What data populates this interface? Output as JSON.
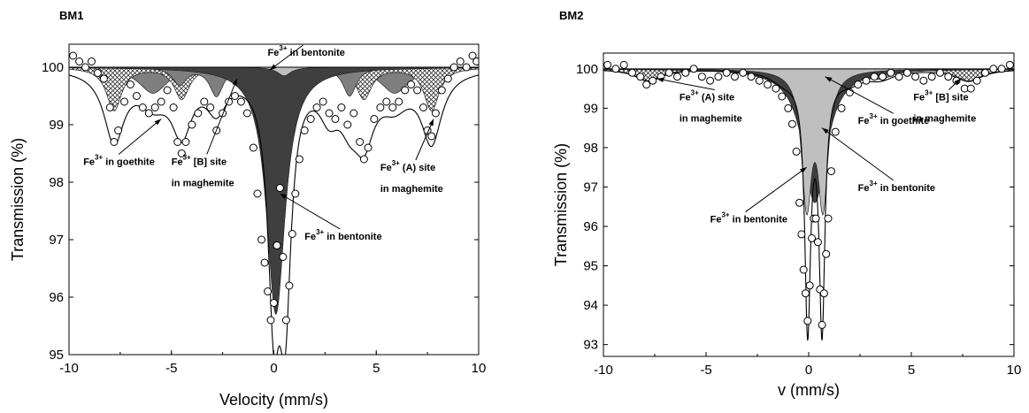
{
  "chart_data": [
    {
      "type": "scatter",
      "title": "BM1",
      "xlabel": "Velocity (mm/s)",
      "ylabel": "Transmission (%)",
      "xlim": [
        -10,
        10
      ],
      "ylim": [
        95,
        100.4
      ],
      "xticks": [
        -10,
        -5,
        0,
        5,
        10
      ],
      "yticks": [
        95,
        96,
        97,
        98,
        99,
        100
      ],
      "baseline": 100,
      "grid": false,
      "components": [
        {
          "kind": "fill-mid",
          "color": "#7f7f7f",
          "peaks": [
            {
              "x": -5.9,
              "d": 0.45,
              "w": 0.85
            },
            {
              "x": 5.9,
              "d": 0.45,
              "w": 0.85
            }
          ]
        },
        {
          "kind": "fill-hatch",
          "color": "#666666",
          "peaks": [
            {
              "x": -7.8,
              "d": 0.75,
              "w": 0.45
            },
            {
              "x": 7.7,
              "d": 0.75,
              "w": 0.45
            },
            {
              "x": -4.5,
              "d": 0.55,
              "w": 0.45
            },
            {
              "x": 4.4,
              "d": 0.55,
              "w": 0.45
            }
          ]
        },
        {
          "kind": "fill-mid",
          "color": "#7f7f7f",
          "peaks": [
            {
              "x": -2.8,
              "d": 0.5,
              "w": 0.4
            },
            {
              "x": 3.7,
              "d": 0.5,
              "w": 0.4
            },
            {
              "x": -4.6,
              "d": 0.3,
              "w": 0.4
            }
          ]
        },
        {
          "kind": "fill-dark",
          "color": "#3f3f3f",
          "peaks": [
            {
              "x": 0.1,
              "d": 4.3,
              "w": 0.55
            }
          ]
        },
        {
          "kind": "fill-light",
          "color": "#bfbfbf",
          "peaks": [
            {
              "x": 0.5,
              "d": 0.15,
              "w": 0.4
            }
          ]
        }
      ],
      "fit_envelope": {
        "peaks": [
          {
            "x": -7.8,
            "d": 1.2,
            "w": 0.6
          },
          {
            "x": -5.9,
            "d": 0.5,
            "w": 0.9
          },
          {
            "x": -4.5,
            "d": 1.0,
            "w": 0.6
          },
          {
            "x": -2.8,
            "d": 0.6,
            "w": 0.6
          },
          {
            "x": 0.0,
            "d": 3.8,
            "w": 0.35
          },
          {
            "x": 0.55,
            "d": 3.8,
            "w": 0.35
          },
          {
            "x": 2.7,
            "d": 0.6,
            "w": 0.6
          },
          {
            "x": 3.7,
            "d": 0.6,
            "w": 0.6
          },
          {
            "x": 4.4,
            "d": 1.0,
            "w": 0.6
          },
          {
            "x": 5.9,
            "d": 0.5,
            "w": 0.9
          },
          {
            "x": 7.7,
            "d": 1.2,
            "w": 0.6
          }
        ]
      },
      "spectrum_points": [
        [
          -9.8,
          100.2
        ],
        [
          -9.5,
          100.1
        ],
        [
          -9.2,
          100.0
        ],
        [
          -8.9,
          100.1
        ],
        [
          -8.6,
          99.9
        ],
        [
          -8.3,
          99.8
        ],
        [
          -8.0,
          99.3
        ],
        [
          -7.8,
          98.7
        ],
        [
          -7.6,
          98.9
        ],
        [
          -7.3,
          99.4
        ],
        [
          -7.0,
          99.7
        ],
        [
          -6.7,
          99.5
        ],
        [
          -6.4,
          99.3
        ],
        [
          -6.1,
          99.2
        ],
        [
          -5.8,
          99.3
        ],
        [
          -5.5,
          99.4
        ],
        [
          -5.2,
          99.6
        ],
        [
          -4.9,
          99.3
        ],
        [
          -4.7,
          98.7
        ],
        [
          -4.5,
          98.5
        ],
        [
          -4.3,
          98.7
        ],
        [
          -4.0,
          99.0
        ],
        [
          -3.7,
          99.2
        ],
        [
          -3.4,
          99.4
        ],
        [
          -3.1,
          99.3
        ],
        [
          -2.8,
          98.9
        ],
        [
          -2.5,
          99.2
        ],
        [
          -2.2,
          99.4
        ],
        [
          -1.9,
          99.5
        ],
        [
          -1.6,
          99.4
        ],
        [
          -1.3,
          99.2
        ],
        [
          -1.0,
          98.6
        ],
        [
          -0.8,
          97.8
        ],
        [
          -0.6,
          97.0
        ],
        [
          -0.45,
          96.6
        ],
        [
          -0.3,
          96.1
        ],
        [
          -0.15,
          95.6
        ],
        [
          0.0,
          95.9
        ],
        [
          0.15,
          96.9
        ],
        [
          0.3,
          97.9
        ],
        [
          0.45,
          96.7
        ],
        [
          0.6,
          95.6
        ],
        [
          0.75,
          96.2
        ],
        [
          0.9,
          97.1
        ],
        [
          1.05,
          97.8
        ],
        [
          1.25,
          98.4
        ],
        [
          1.5,
          98.9
        ],
        [
          1.8,
          99.1
        ],
        [
          2.1,
          99.3
        ],
        [
          2.4,
          99.4
        ],
        [
          2.7,
          99.2
        ],
        [
          3.0,
          99.1
        ],
        [
          3.3,
          99.3
        ],
        [
          3.6,
          99.0
        ],
        [
          3.9,
          99.2
        ],
        [
          4.2,
          98.7
        ],
        [
          4.4,
          98.4
        ],
        [
          4.6,
          98.6
        ],
        [
          4.9,
          99.1
        ],
        [
          5.2,
          99.3
        ],
        [
          5.5,
          99.4
        ],
        [
          5.8,
          99.3
        ],
        [
          6.1,
          99.4
        ],
        [
          6.4,
          99.6
        ],
        [
          6.7,
          99.7
        ],
        [
          7.0,
          99.6
        ],
        [
          7.3,
          99.3
        ],
        [
          7.5,
          98.9
        ],
        [
          7.7,
          98.8
        ],
        [
          7.9,
          99.2
        ],
        [
          8.2,
          99.6
        ],
        [
          8.5,
          99.8
        ],
        [
          8.8,
          100.0
        ],
        [
          9.1,
          100.1
        ],
        [
          9.4,
          100.0
        ],
        [
          9.7,
          100.2
        ],
        [
          9.9,
          100.1
        ]
      ],
      "annotations": [
        {
          "lines": [
            "Fe3+ in bentonite"
          ],
          "x": -0.3,
          "y": 100.2,
          "ax": -0.2,
          "ay": 99.95
        },
        {
          "lines": [
            "Fe3+ in goethite"
          ],
          "x": -9.3,
          "y": 98.3,
          "ax": -5.5,
          "ay": 99.1
        },
        {
          "lines": [
            "Fe3+ [B] site",
            "in maghemite"
          ],
          "x": -5.0,
          "y": 98.3,
          "ax": -1.8,
          "ay": 99.8
        },
        {
          "lines": [
            "Fe3+ (A) site",
            "in maghemite"
          ],
          "x": 5.2,
          "y": 98.2,
          "ax": 7.8,
          "ay": 99.1
        },
        {
          "lines": [
            "Fe3+ in bentonite"
          ],
          "x": 1.5,
          "y": 97.0,
          "ax": 0.3,
          "ay": 97.8
        }
      ]
    },
    {
      "type": "scatter",
      "title": "BM2",
      "xlabel": "v (mm/s)",
      "ylabel": "Transmission (%)",
      "xlim": [
        -10,
        10
      ],
      "ylim": [
        92.7,
        100.4
      ],
      "xticks": [
        -10,
        -5,
        0,
        5,
        10
      ],
      "yticks": [
        93,
        94,
        95,
        96,
        97,
        98,
        99,
        100
      ],
      "baseline": 100,
      "grid": false,
      "components": [
        {
          "kind": "fill-hatch",
          "color": "#666666",
          "peaks": [
            {
              "x": -7.8,
              "d": 0.3,
              "w": 0.8
            },
            {
              "x": 7.8,
              "d": 0.3,
              "w": 0.8
            }
          ]
        },
        {
          "kind": "fill-mid",
          "color": "#7f7f7f",
          "peaks": [
            {
              "x": -1.2,
              "d": 0.25,
              "w": 0.8
            },
            {
              "x": 2.0,
              "d": 0.25,
              "w": 0.8
            },
            {
              "x": 3.5,
              "d": 0.2,
              "w": 0.8
            }
          ]
        },
        {
          "kind": "fill-dark",
          "color": "#3f3f3f",
          "peaks": [
            {
              "x": 0.3,
              "d": 3.4,
              "w": 0.7
            }
          ]
        },
        {
          "kind": "fill-light",
          "color": "#bfbfbf",
          "peaks": [
            {
              "x": -0.1,
              "d": 3.3,
              "w": 0.3
            },
            {
              "x": 0.7,
              "d": 3.3,
              "w": 0.3
            }
          ]
        }
      ],
      "fit_envelope": {
        "peaks": [
          {
            "x": -7.8,
            "d": 0.3,
            "w": 0.8
          },
          {
            "x": -1.2,
            "d": 0.25,
            "w": 0.8
          },
          {
            "x": -0.05,
            "d": 6.2,
            "w": 0.17
          },
          {
            "x": 0.65,
            "d": 6.2,
            "w": 0.17
          },
          {
            "x": 0.3,
            "d": 0.3,
            "w": 0.7
          },
          {
            "x": 2.0,
            "d": 0.25,
            "w": 0.8
          },
          {
            "x": 3.5,
            "d": 0.2,
            "w": 0.8
          },
          {
            "x": 7.8,
            "d": 0.3,
            "w": 0.8
          }
        ]
      },
      "spectrum_points": [
        [
          -9.8,
          100.1
        ],
        [
          -9.4,
          100.0
        ],
        [
          -9.0,
          100.1
        ],
        [
          -8.6,
          99.9
        ],
        [
          -8.2,
          99.8
        ],
        [
          -7.9,
          99.6
        ],
        [
          -7.6,
          99.7
        ],
        [
          -7.2,
          99.8
        ],
        [
          -6.8,
          99.9
        ],
        [
          -6.4,
          99.8
        ],
        [
          -6.0,
          99.9
        ],
        [
          -5.6,
          100.0
        ],
        [
          -5.2,
          99.8
        ],
        [
          -4.8,
          99.7
        ],
        [
          -4.4,
          99.8
        ],
        [
          -4.0,
          99.9
        ],
        [
          -3.6,
          99.8
        ],
        [
          -3.2,
          99.9
        ],
        [
          -2.8,
          99.8
        ],
        [
          -2.4,
          99.7
        ],
        [
          -2.0,
          99.6
        ],
        [
          -1.6,
          99.5
        ],
        [
          -1.3,
          99.3
        ],
        [
          -1.0,
          99.0
        ],
        [
          -0.8,
          98.6
        ],
        [
          -0.6,
          97.9
        ],
        [
          -0.45,
          96.6
        ],
        [
          -0.35,
          95.8
        ],
        [
          -0.25,
          94.9
        ],
        [
          -0.15,
          94.3
        ],
        [
          -0.05,
          93.6
        ],
        [
          0.05,
          94.5
        ],
        [
          0.15,
          95.7
        ],
        [
          0.25,
          96.2
        ],
        [
          0.35,
          96.2
        ],
        [
          0.45,
          95.6
        ],
        [
          0.55,
          94.4
        ],
        [
          0.65,
          93.5
        ],
        [
          0.75,
          94.3
        ],
        [
          0.85,
          95.3
        ],
        [
          0.95,
          96.2
        ],
        [
          1.1,
          97.4
        ],
        [
          1.3,
          98.4
        ],
        [
          1.6,
          99.0
        ],
        [
          2.0,
          99.4
        ],
        [
          2.4,
          99.6
        ],
        [
          2.8,
          99.7
        ],
        [
          3.2,
          99.8
        ],
        [
          3.6,
          99.8
        ],
        [
          4.0,
          99.9
        ],
        [
          4.4,
          99.8
        ],
        [
          4.8,
          99.9
        ],
        [
          5.2,
          99.8
        ],
        [
          5.6,
          99.7
        ],
        [
          6.0,
          99.8
        ],
        [
          6.4,
          99.9
        ],
        [
          6.8,
          99.8
        ],
        [
          7.2,
          99.7
        ],
        [
          7.6,
          99.5
        ],
        [
          7.9,
          99.5
        ],
        [
          8.2,
          99.7
        ],
        [
          8.6,
          99.9
        ],
        [
          9.0,
          100.0
        ],
        [
          9.4,
          100.0
        ],
        [
          9.8,
          100.1
        ]
      ],
      "annotations": [
        {
          "lines": [
            "Fe3+ (A) site",
            "in maghemite"
          ],
          "x": -6.3,
          "y": 99.2,
          "ax": -7.4,
          "ay": 99.75
        },
        {
          "lines": [
            "Fe3+ [B] site",
            "in maghemite"
          ],
          "x": 5.1,
          "y": 99.2,
          "ax": 7.4,
          "ay": 99.75
        },
        {
          "lines": [
            "Fe3+ in goethite"
          ],
          "x": 2.4,
          "y": 98.6,
          "ax": 0.8,
          "ay": 99.8
        },
        {
          "lines": [
            "Fe3+ in bentonite"
          ],
          "x": 2.4,
          "y": 96.9,
          "ax": 0.65,
          "ay": 98.5
        },
        {
          "lines": [
            "Fe3+ in bentonite"
          ],
          "x": -4.8,
          "y": 96.1,
          "ax": -0.1,
          "ay": 97.5
        }
      ]
    }
  ]
}
